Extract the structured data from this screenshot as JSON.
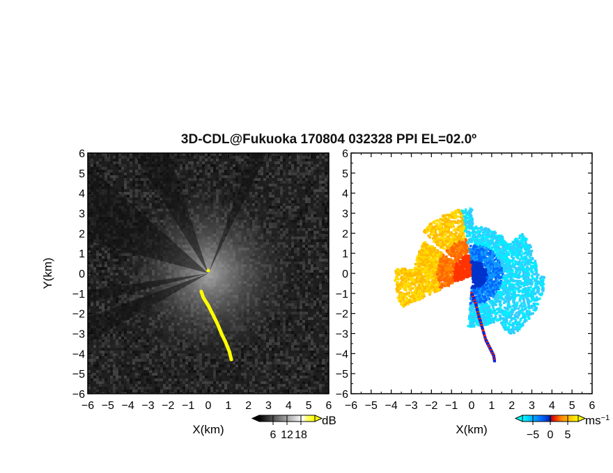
{
  "title": "3D-CDL@Fukuoka 170804 032328 PPI EL=02.0º",
  "chart_data": [
    {
      "type": "heatmap",
      "panel": "left",
      "xlabel": "X(km)",
      "ylabel": "Y(km)",
      "xlim": [
        -6,
        6
      ],
      "ylim": [
        -6,
        6
      ],
      "x_ticks": [
        "−6",
        "−5",
        "−4",
        "−3",
        "−2",
        "−1",
        "0",
        "1",
        "2",
        "3",
        "4",
        "5",
        "6"
      ],
      "y_ticks": [
        "−6",
        "−5",
        "−4",
        "−3",
        "−2",
        "−1",
        "0",
        "1",
        "2",
        "3",
        "4",
        "5",
        "6"
      ],
      "colorbar": {
        "unit": "dB",
        "ticks": [
          "6",
          "12",
          "18"
        ],
        "tick_values": [
          6,
          12,
          18
        ],
        "range": [
          0,
          24
        ],
        "colors": [
          "#000000",
          "#ffffff",
          "#ffff00"
        ]
      },
      "highlight_color": "#ffff00",
      "highlight_trail": [
        [
          -0.35,
          -0.9
        ],
        [
          -0.25,
          -1.2
        ],
        [
          0.0,
          -1.6
        ],
        [
          0.2,
          -2.0
        ],
        [
          0.45,
          -2.5
        ],
        [
          0.7,
          -3.1
        ],
        [
          0.85,
          -3.4
        ],
        [
          1.05,
          -3.9
        ],
        [
          1.15,
          -4.3
        ]
      ]
    },
    {
      "type": "heatmap",
      "panel": "right",
      "xlabel": "X(km)",
      "xlim": [
        -6,
        6
      ],
      "ylim": [
        -6,
        6
      ],
      "x_ticks": [
        "−6",
        "−5",
        "−4",
        "−3",
        "−2",
        "−1",
        "0",
        "1",
        "2",
        "3",
        "4",
        "5",
        "6"
      ],
      "y_ticks": [
        "−6",
        "−5",
        "−4",
        "−3",
        "−2",
        "−1",
        "0",
        "1",
        "2",
        "3",
        "4",
        "5",
        "6"
      ],
      "colorbar": {
        "unit": "ms",
        "unit_exp": "−1",
        "ticks": [
          "−5",
          "0",
          "5"
        ],
        "tick_values": [
          -5,
          0,
          5
        ],
        "range": [
          -8,
          8
        ],
        "colors": [
          "#00ffff",
          "#0044ff",
          "#ff0000",
          "#ff9900",
          "#ffff00"
        ]
      },
      "trail": [
        [
          0.0,
          -1.0
        ],
        [
          0.2,
          -1.5
        ],
        [
          0.35,
          -2.1
        ],
        [
          0.5,
          -2.6
        ],
        [
          0.7,
          -3.3
        ],
        [
          0.9,
          -3.7
        ],
        [
          1.1,
          -4.1
        ],
        [
          1.15,
          -4.4
        ]
      ]
    }
  ]
}
